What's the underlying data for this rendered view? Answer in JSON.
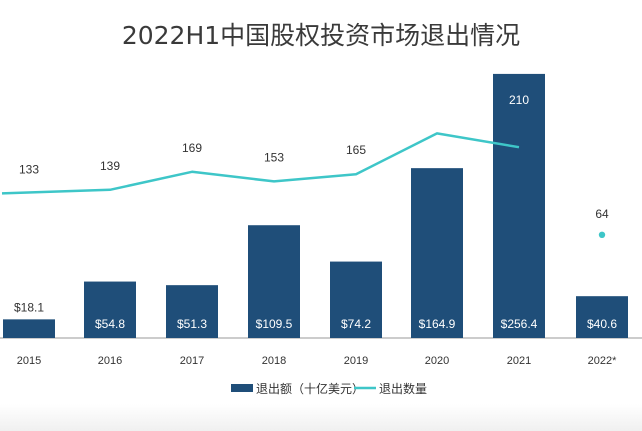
{
  "chart_data": {
    "type": "bar+line",
    "title": "2022H1中国股权投资市场退出情况",
    "categories": [
      "2015",
      "2016",
      "2017",
      "2018",
      "2019",
      "2020",
      "2021",
      "2022*"
    ],
    "series": [
      {
        "name": "退出额（十亿美元）",
        "type": "bar",
        "color": "#1f4e79",
        "values": [
          18.1,
          54.8,
          51.3,
          109.5,
          74.2,
          164.9,
          256.4,
          40.6
        ],
        "labels": [
          "$18.1",
          "$54.8",
          "$51.3",
          "$109.5",
          "$74.2",
          "$164.9",
          "$256.4",
          "$40.6"
        ]
      },
      {
        "name": "退出数量",
        "type": "line",
        "color": "#3ec6c8",
        "values": [
          133,
          139,
          169,
          153,
          165,
          233,
          210,
          64
        ],
        "labels": [
          "133",
          "139",
          "169",
          "153",
          "165",
          "",
          "210",
          "64"
        ]
      }
    ],
    "bar_ylim": [
      0,
      300
    ],
    "line_ylim": [
      0,
      300
    ],
    "legend_position": "bottom-center",
    "grid": false
  }
}
